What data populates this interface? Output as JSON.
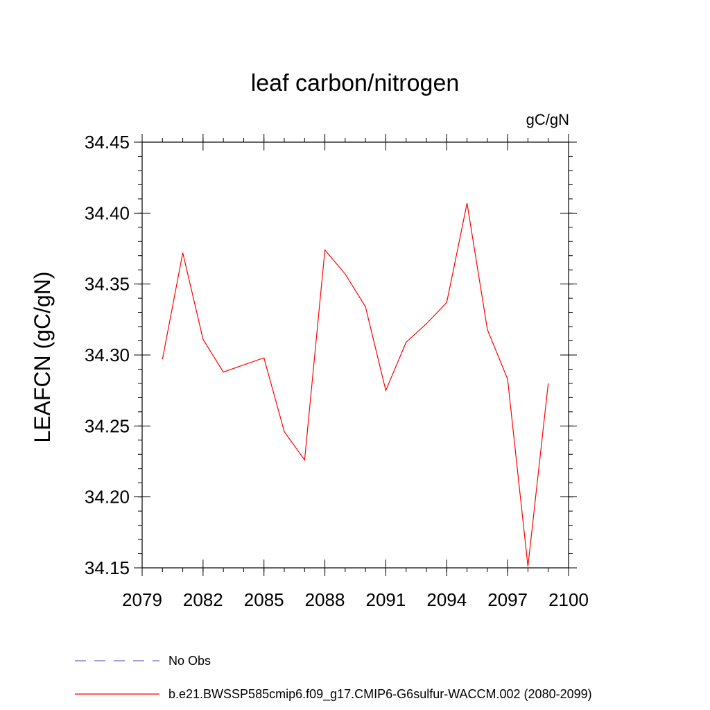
{
  "chart_data": {
    "type": "line",
    "title": "leaf carbon/nitrogen",
    "units": "gC/gN",
    "ylabel": "LEAFCN  (gC/gN)",
    "xlabel": "",
    "xlim": [
      2079,
      2100
    ],
    "ylim": [
      34.15,
      34.45
    ],
    "x_ticks": [
      2079,
      2082,
      2085,
      2088,
      2091,
      2094,
      2097,
      2100
    ],
    "y_ticks": [
      "34.15",
      "34.20",
      "34.25",
      "34.30",
      "34.35",
      "34.40",
      "34.45"
    ],
    "x_minor_step": 1,
    "y_minor_step": 0.01,
    "grid": false,
    "legend_position": "bottom",
    "series": [
      {
        "name": "No Obs",
        "color": "#7b68c8",
        "style": "dashed",
        "x": [],
        "values": []
      },
      {
        "name": "b.e21.BWSSP585cmip6.f09_g17.CMIP6-G6sulfur-WACCM.002 (2080-2099)",
        "color": "#ff0000",
        "style": "solid",
        "x": [
          2080,
          2081,
          2082,
          2083,
          2084,
          2085,
          2086,
          2087,
          2088,
          2089,
          2090,
          2091,
          2092,
          2093,
          2094,
          2095,
          2096,
          2097,
          2098,
          2099
        ],
        "values": [
          34.297,
          34.372,
          34.311,
          34.288,
          34.293,
          34.298,
          34.246,
          34.226,
          34.374,
          34.357,
          34.334,
          34.275,
          34.309,
          34.322,
          34.337,
          34.407,
          34.318,
          34.283,
          34.151,
          34.28
        ]
      }
    ]
  }
}
